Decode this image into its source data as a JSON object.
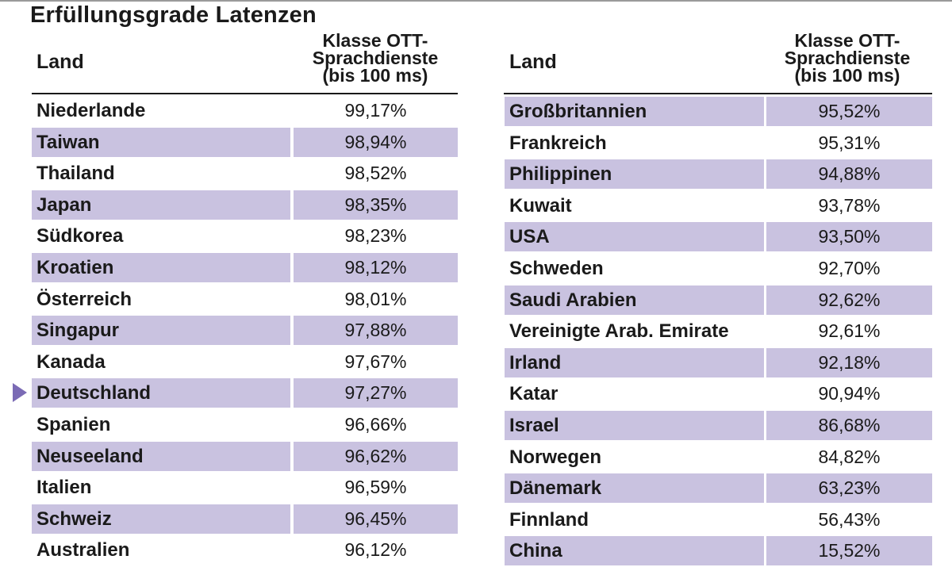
{
  "title": "Erfüllungsgrade Latenzen",
  "header": {
    "land": "Land",
    "value": "Klasse OTT-\nSprachdienste\n(bis 100 ms)"
  },
  "colors": {
    "shade": "#c9c2e0",
    "marker": "#7b6bb5"
  },
  "chart_data": {
    "type": "table",
    "title": "Erfüllungsgrade Latenzen",
    "columns": [
      "Land",
      "Klasse OTT-Sprachdienste (bis 100 ms)"
    ],
    "highlight": "Deutschland",
    "left": [
      {
        "land": "Niederlande",
        "value": "99,17%"
      },
      {
        "land": "Taiwan",
        "value": "98,94%"
      },
      {
        "land": "Thailand",
        "value": "98,52%"
      },
      {
        "land": "Japan",
        "value": "98,35%"
      },
      {
        "land": "Südkorea",
        "value": "98,23%"
      },
      {
        "land": "Kroatien",
        "value": "98,12%"
      },
      {
        "land": "Österreich",
        "value": "98,01%"
      },
      {
        "land": "Singapur",
        "value": "97,88%"
      },
      {
        "land": "Kanada",
        "value": "97,67%"
      },
      {
        "land": "Deutschland",
        "value": "97,27%"
      },
      {
        "land": "Spanien",
        "value": "96,66%"
      },
      {
        "land": "Neuseeland",
        "value": "96,62%"
      },
      {
        "land": "Italien",
        "value": "96,59%"
      },
      {
        "land": "Schweiz",
        "value": "96,45%"
      },
      {
        "land": "Australien",
        "value": "96,12%"
      }
    ],
    "right": [
      {
        "land": "Großbritannien",
        "value": "95,52%"
      },
      {
        "land": "Frankreich",
        "value": "95,31%"
      },
      {
        "land": "Philippinen",
        "value": "94,88%"
      },
      {
        "land": "Kuwait",
        "value": "93,78%"
      },
      {
        "land": "USA",
        "value": "93,50%"
      },
      {
        "land": "Schweden",
        "value": "92,70%"
      },
      {
        "land": "Saudi Arabien",
        "value": "92,62%"
      },
      {
        "land": "Vereinigte Arab. Emirate",
        "value": "92,61%"
      },
      {
        "land": "Irland",
        "value": "92,18%"
      },
      {
        "land": "Katar",
        "value": "90,94%"
      },
      {
        "land": "Israel",
        "value": "86,68%"
      },
      {
        "land": "Norwegen",
        "value": "84,82%"
      },
      {
        "land": "Dänemark",
        "value": "63,23%"
      },
      {
        "land": "Finnland",
        "value": "56,43%"
      },
      {
        "land": "China",
        "value": "15,52%"
      }
    ]
  }
}
